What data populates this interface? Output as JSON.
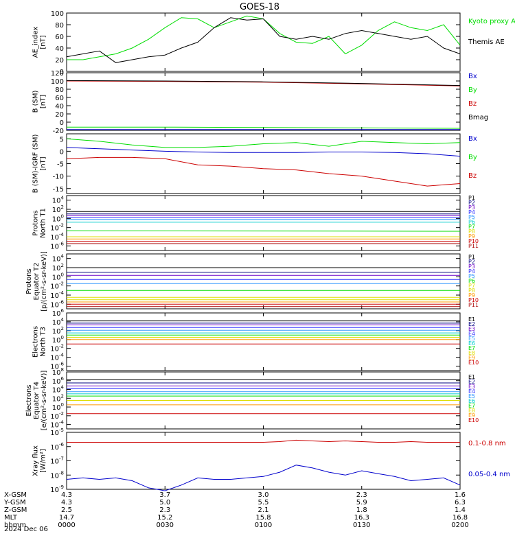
{
  "title": "GOES-18",
  "date_label": "2024 Dec 06",
  "colors": {
    "black": "#000000",
    "green": "#00dd00",
    "blue": "#0000cc",
    "red": "#cc0000",
    "navy": "#000080",
    "purple": "#6a00c8",
    "indigo": "#3333ff",
    "lightblue": "#3399ff",
    "cyan": "#00cccc",
    "teal": "#00aaaa",
    "gold": "#dddd00",
    "orange": "#ff9900",
    "darkred": "#aa0000"
  },
  "chart_data": [
    {
      "type": "line",
      "ylabel": [
        "AE_index",
        "[nT]"
      ],
      "ylim": [
        0,
        100
      ],
      "yticks": [
        "0",
        "20",
        "40",
        "60",
        "80",
        "100"
      ],
      "x": [
        0,
        5,
        10,
        15,
        20,
        25,
        30,
        35,
        40,
        45,
        50,
        55,
        60,
        65,
        70,
        75,
        80,
        85,
        90,
        95,
        100,
        105,
        110,
        115,
        120
      ],
      "series": [
        {
          "name": "Kyoto proxy AE",
          "color": "green",
          "values": [
            20,
            20,
            25,
            30,
            40,
            55,
            75,
            92,
            90,
            75,
            85,
            95,
            90,
            65,
            50,
            48,
            60,
            30,
            45,
            70,
            85,
            75,
            70,
            80,
            45
          ]
        },
        {
          "name": "Themis AE",
          "color": "black",
          "values": [
            25,
            30,
            35,
            15,
            20,
            25,
            28,
            40,
            50,
            75,
            92,
            88,
            90,
            60,
            55,
            60,
            55,
            65,
            70,
            65,
            60,
            55,
            60,
            40,
            30
          ]
        }
      ]
    },
    {
      "type": "line",
      "ylabel": [
        "B (SM)",
        "[nT]"
      ],
      "ylim": [
        -20,
        120
      ],
      "yticks": [
        "-20",
        "0",
        "20",
        "40",
        "60",
        "80",
        "100",
        "120"
      ],
      "x": [
        0,
        30,
        60,
        90,
        120
      ],
      "series": [
        {
          "name": "Bx",
          "color": "blue",
          "values": [
            -18,
            -18,
            -18,
            -18,
            -18
          ]
        },
        {
          "name": "By",
          "color": "green",
          "values": [
            -12,
            -12,
            -13,
            -14,
            -15
          ]
        },
        {
          "name": "Bz",
          "color": "red",
          "values": [
            100,
            99,
            97,
            93,
            88
          ]
        },
        {
          "name": "Bmag",
          "color": "black",
          "values": [
            101,
            100,
            98,
            94,
            89
          ]
        }
      ]
    },
    {
      "type": "line",
      "ylabel": [
        "B (SM)-IGRF (SM)",
        "[nT]"
      ],
      "ylim": [
        -17,
        7
      ],
      "yticks": [
        "-15",
        "-10",
        "-5",
        "0",
        "5"
      ],
      "x": [
        0,
        10,
        20,
        30,
        40,
        50,
        60,
        70,
        80,
        90,
        100,
        110,
        120
      ],
      "series": [
        {
          "name": "Bx",
          "color": "blue",
          "values": [
            1.5,
            1,
            0.5,
            0,
            -0.3,
            -0.5,
            -0.5,
            -0.5,
            -0.3,
            -0.3,
            -0.5,
            -1,
            -2
          ]
        },
        {
          "name": "By",
          "color": "green",
          "values": [
            5,
            4,
            2.5,
            1.5,
            1.5,
            2,
            3,
            3.5,
            2,
            4,
            3.5,
            3,
            3.5
          ]
        },
        {
          "name": "Bz",
          "color": "red",
          "values": [
            -3,
            -2.5,
            -2.5,
            -3,
            -5.5,
            -6,
            -7,
            -7.5,
            -9,
            -10,
            -12,
            -14,
            -13
          ]
        }
      ]
    },
    {
      "type": "line",
      "log": true,
      "ylabel": [
        "Protons",
        "North T1"
      ],
      "ylim_exp": [
        -7,
        5
      ],
      "ytick_exps": [
        -6,
        -4,
        -2,
        0,
        2,
        4
      ],
      "x": [
        0,
        120
      ],
      "series": [
        {
          "name": "P1",
          "color": "black",
          "values": [
            1.5,
            1.5
          ]
        },
        {
          "name": "P2",
          "color": "navy",
          "values": [
            1.0,
            1.0
          ]
        },
        {
          "name": "P3",
          "color": "purple",
          "values": [
            0.6,
            0.6
          ]
        },
        {
          "name": "P4",
          "color": "indigo",
          "values": [
            0.2,
            0.2
          ]
        },
        {
          "name": "P5",
          "color": "lightblue",
          "values": [
            -0.2,
            -0.2
          ]
        },
        {
          "name": "P6",
          "color": "cyan",
          "values": [
            -0.8,
            -0.8
          ]
        },
        {
          "name": "P7",
          "color": "green",
          "values": [
            -2.7,
            -2.8
          ]
        },
        {
          "name": "P8",
          "color": "gold",
          "values": [
            -4,
            -4
          ]
        },
        {
          "name": "P9",
          "color": "orange",
          "values": [
            -4.5,
            -4.5
          ]
        },
        {
          "name": "P10",
          "color": "red",
          "values": [
            -5,
            -5
          ]
        },
        {
          "name": "P11",
          "color": "darkred",
          "values": [
            -5.5,
            -5.5
          ]
        }
      ]
    },
    {
      "type": "line",
      "log": true,
      "ylabel": [
        "Protons",
        "Equator T2",
        "[p/(cm²-s-sr-keV)]"
      ],
      "ylim_exp": [
        -7,
        5
      ],
      "ytick_exps": [
        -6,
        -4,
        -2,
        0,
        2,
        4
      ],
      "x": [
        0,
        120
      ],
      "series": [
        {
          "name": "P1",
          "color": "black",
          "values": [
            2,
            2
          ]
        },
        {
          "name": "P2",
          "color": "navy",
          "values": [
            1,
            1
          ]
        },
        {
          "name": "P3",
          "color": "purple",
          "values": [
            0.3,
            0.3
          ]
        },
        {
          "name": "P4",
          "color": "indigo",
          "values": [
            -0.6,
            -0.6
          ]
        },
        {
          "name": "P5",
          "color": "lightblue",
          "values": [
            -1.5,
            -1.5
          ]
        },
        {
          "name": "P6",
          "color": "green",
          "values": [
            -3,
            -3
          ]
        },
        {
          "name": "P7",
          "color": "gold",
          "values": [
            -4.5,
            -4.5
          ]
        },
        {
          "name": "P8",
          "color": "gold",
          "values": [
            -5,
            -5
          ]
        },
        {
          "name": "P9",
          "color": "orange",
          "values": [
            -5.5,
            -5.5
          ]
        },
        {
          "name": "P10",
          "color": "red",
          "values": [
            -6,
            -6
          ]
        },
        {
          "name": "P11",
          "color": "darkred",
          "values": [
            -6.5,
            -6.5
          ]
        }
      ]
    },
    {
      "type": "line",
      "log": true,
      "ylabel": [
        "Electrons",
        "North T3"
      ],
      "ylim_exp": [
        -7,
        6
      ],
      "ytick_exps": [
        -6,
        -4,
        -2,
        0,
        2,
        4,
        6
      ],
      "x": [
        0,
        120
      ],
      "series": [
        {
          "name": "E1",
          "color": "black",
          "values": [
            4.2,
            4.2
          ]
        },
        {
          "name": "E2",
          "color": "navy",
          "values": [
            3.7,
            3.7
          ]
        },
        {
          "name": "E3",
          "color": "purple",
          "values": [
            3.3,
            3.3
          ]
        },
        {
          "name": "E4",
          "color": "indigo",
          "values": [
            2.7,
            2.7
          ]
        },
        {
          "name": "E5",
          "color": "lightblue",
          "values": [
            2.1,
            2.1
          ]
        },
        {
          "name": "E6",
          "color": "cyan",
          "values": [
            1.5,
            1.5
          ]
        },
        {
          "name": "E7",
          "color": "green",
          "values": [
            1.0,
            1.0
          ]
        },
        {
          "name": "E8",
          "color": "gold",
          "values": [
            0.5,
            0.5
          ]
        },
        {
          "name": "E9",
          "color": "orange",
          "values": [
            0,
            0
          ]
        },
        {
          "name": "E10",
          "color": "red",
          "values": [
            -1,
            -1
          ]
        }
      ]
    },
    {
      "type": "line",
      "log": true,
      "ylabel": [
        "Electrons",
        "Equator T4",
        "[e/(cm²-s-sr-keV)]"
      ],
      "ylim_exp": [
        -5,
        8
      ],
      "ytick_exps": [
        -4,
        -2,
        0,
        2,
        4,
        6,
        8
      ],
      "x": [
        0,
        120
      ],
      "series": [
        {
          "name": "E1",
          "color": "black",
          "values": [
            6.2,
            6.2
          ]
        },
        {
          "name": "E2",
          "color": "navy",
          "values": [
            5.5,
            5.5
          ]
        },
        {
          "name": "E3",
          "color": "purple",
          "values": [
            4.8,
            4.8
          ]
        },
        {
          "name": "E4",
          "color": "indigo",
          "values": [
            4.2,
            4.2
          ]
        },
        {
          "name": "E5",
          "color": "lightblue",
          "values": [
            3.5,
            3.5
          ]
        },
        {
          "name": "E6",
          "color": "cyan",
          "values": [
            3.0,
            3.0
          ]
        },
        {
          "name": "E7",
          "color": "green",
          "values": [
            2.5,
            2.5
          ]
        },
        {
          "name": "E8",
          "color": "gold",
          "values": [
            1.5,
            1.5
          ]
        },
        {
          "name": "E9",
          "color": "orange",
          "values": [
            0.5,
            0.5
          ]
        },
        {
          "name": "E10",
          "color": "red",
          "values": [
            -1.5,
            -1.5
          ]
        }
      ]
    },
    {
      "type": "line",
      "log": true,
      "ylabel": [
        "Xray flux",
        "[W/m²]"
      ],
      "ylim_exp": [
        -9,
        -5
      ],
      "ytick_exps": [
        -9,
        -8,
        -7,
        -6,
        -5
      ],
      "x": [
        0,
        5,
        10,
        15,
        20,
        25,
        30,
        35,
        40,
        45,
        50,
        55,
        60,
        65,
        70,
        75,
        80,
        85,
        90,
        95,
        100,
        105,
        110,
        115,
        120
      ],
      "series": [
        {
          "name": "0.1-0.8 nm",
          "color": "red",
          "values": [
            -5.7,
            -5.7,
            -5.7,
            -5.7,
            -5.7,
            -5.7,
            -5.7,
            -5.7,
            -5.7,
            -5.7,
            -5.7,
            -5.7,
            -5.7,
            -5.65,
            -5.55,
            -5.6,
            -5.65,
            -5.6,
            -5.65,
            -5.7,
            -5.7,
            -5.65,
            -5.7,
            -5.7,
            -5.7
          ]
        },
        {
          "name": "0.05-0.4 nm",
          "color": "blue",
          "values": [
            -8.3,
            -8.2,
            -8.3,
            -8.2,
            -8.4,
            -8.9,
            -9.1,
            -8.7,
            -8.2,
            -8.3,
            -8.3,
            -8.2,
            -8.1,
            -7.8,
            -7.3,
            -7.5,
            -7.8,
            -8.0,
            -7.7,
            -7.9,
            -8.1,
            -8.4,
            -8.3,
            -8.2,
            -8.7
          ]
        }
      ]
    }
  ],
  "x_axis": {
    "row_labels": [
      "X-GSM",
      "Y-GSM",
      "Z-GSM",
      "MLT",
      "hhmm"
    ],
    "columns": [
      {
        "values": [
          "4.3",
          "4.3",
          "2.5",
          "14.7",
          "0000"
        ]
      },
      {
        "values": [
          "3.7",
          "5.0",
          "2.3",
          "15.2",
          "0030"
        ]
      },
      {
        "values": [
          "3.0",
          "5.5",
          "2.1",
          "15.8",
          "0100"
        ]
      },
      {
        "values": [
          "2.3",
          "5.9",
          "1.8",
          "16.3",
          "0130"
        ]
      },
      {
        "values": [
          "1.6",
          "6.3",
          "1.4",
          "16.8",
          "0200"
        ]
      }
    ]
  }
}
